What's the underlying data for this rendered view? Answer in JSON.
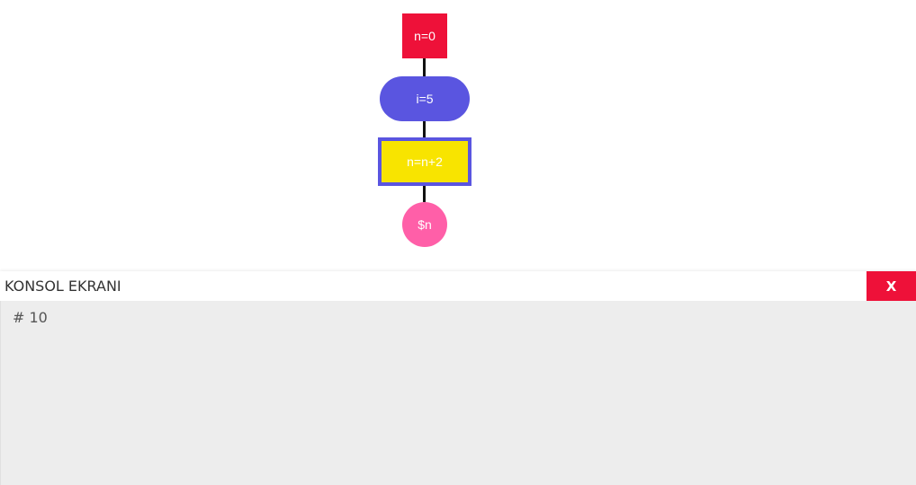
{
  "flowchart": {
    "nodes": [
      {
        "id": "start",
        "label": "n=0",
        "shape": "square",
        "color": "#ee1139"
      },
      {
        "id": "loop",
        "label": "i=5",
        "shape": "pill",
        "color": "#5a55e0"
      },
      {
        "id": "process",
        "label": "n=n+2",
        "shape": "rectangle",
        "color": "#f8e400",
        "border_color": "#5a55e0",
        "selected": true
      },
      {
        "id": "output",
        "label": "$n",
        "shape": "circle",
        "color": "#ff5fa8"
      }
    ],
    "edge_color": "#111111"
  },
  "console": {
    "title": "KONSOL EKRANI",
    "close_label": "X",
    "close_color": "#ee1139",
    "lines": [
      "# 10"
    ]
  }
}
